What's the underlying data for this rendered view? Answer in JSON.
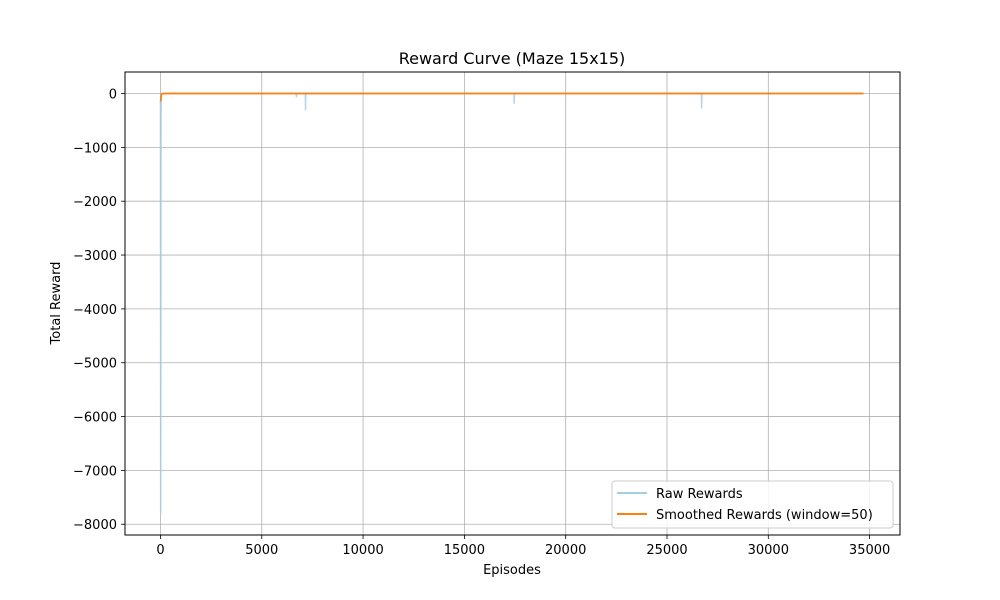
{
  "chart_data": {
    "type": "line",
    "title": "Reward Curve (Maze 15x15)",
    "xlabel": "Episodes",
    "ylabel": "Total Reward",
    "xlim": [
      -1750,
      36500
    ],
    "ylim": [
      -8200,
      400
    ],
    "xticks": [
      0,
      5000,
      10000,
      15000,
      20000,
      25000,
      30000,
      35000
    ],
    "xtick_labels": [
      "0",
      "5000",
      "10000",
      "15000",
      "20000",
      "25000",
      "30000",
      "35000"
    ],
    "yticks": [
      0,
      -1000,
      -2000,
      -3000,
      -4000,
      -5000,
      -6000,
      -7000,
      -8000
    ],
    "ytick_labels": [
      "0",
      "−1000",
      "−2000",
      "−3000",
      "−4000",
      "−5000",
      "−6000",
      "−7000",
      "−8000"
    ],
    "grid": true,
    "legend_position": "lower-right",
    "series": [
      {
        "name": "Raw Rewards",
        "color": "#a6cee3",
        "x": [
          0,
          10,
          20,
          25,
          30,
          40,
          60,
          100,
          200,
          6700,
          6710,
          6720,
          7150,
          7160,
          7170,
          17450,
          17460,
          17470,
          26700,
          26710,
          26720,
          34700
        ],
        "y": [
          -150,
          -7800,
          -5000,
          -2000,
          -400,
          -20,
          -5,
          0,
          0,
          0,
          -60,
          0,
          0,
          -300,
          0,
          0,
          -180,
          0,
          0,
          -270,
          0,
          0
        ]
      },
      {
        "name": "Smoothed Rewards (window=50)",
        "color": "#ff7f0e",
        "x": [
          0,
          15,
          30,
          50,
          100,
          200,
          34700
        ],
        "y": [
          -150,
          -120,
          -60,
          -15,
          -2,
          0,
          0
        ]
      }
    ]
  }
}
